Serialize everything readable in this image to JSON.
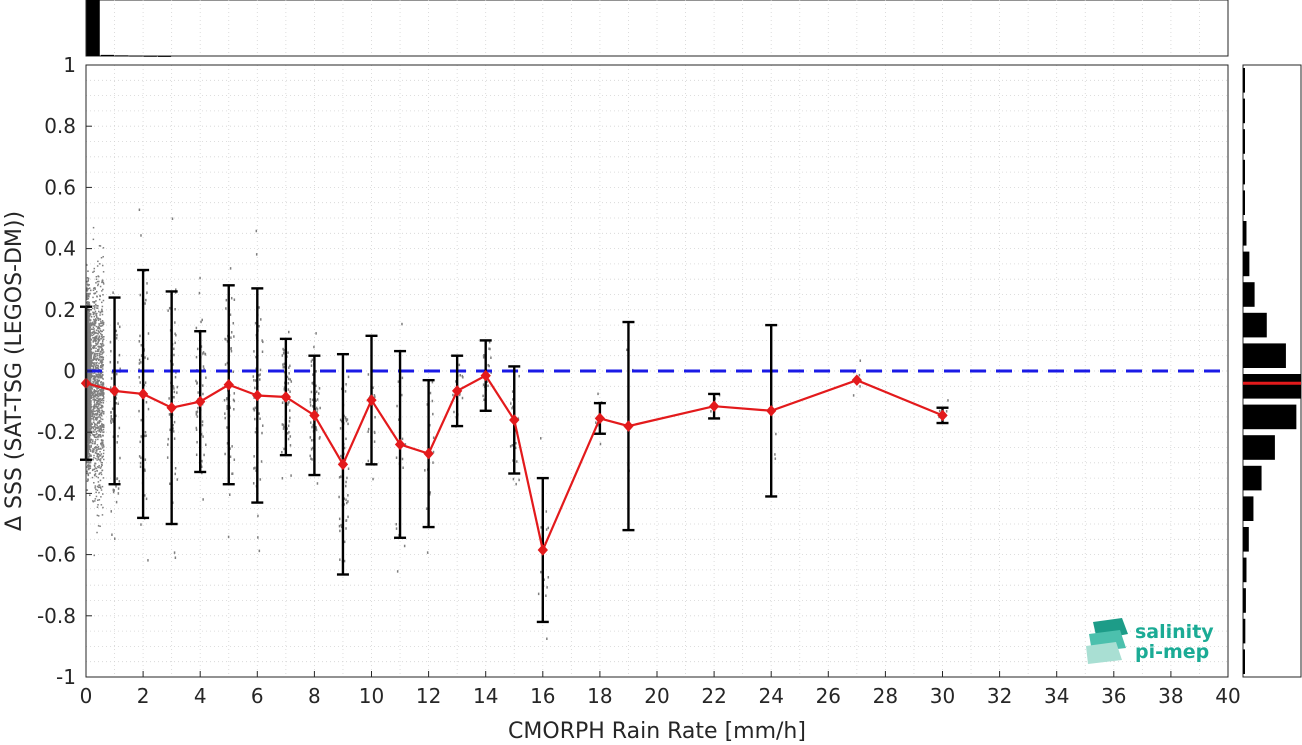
{
  "chart_data": {
    "type": "scatter",
    "xlabel": "CMORPH Rain Rate [mm/h]",
    "ylabel": "Δ SSS (SAT-TSG (LEGOS-DM))",
    "xlim": [
      0,
      40
    ],
    "ylim": [
      -1,
      1
    ],
    "xticks": [
      "0",
      "2",
      "4",
      "6",
      "8",
      "10",
      "12",
      "14",
      "16",
      "18",
      "20",
      "22",
      "24",
      "26",
      "28",
      "30",
      "32",
      "34",
      "36",
      "38",
      "40"
    ],
    "yticks": [
      "1",
      "0.8",
      "0.6",
      "0.4",
      "0.2",
      "0",
      "-0.2",
      "-0.4",
      "-0.6",
      "-0.8",
      "-1"
    ],
    "grid": true,
    "reference_line": {
      "y": 0,
      "style": "dashed",
      "color": "#1a1ae6"
    },
    "mean_series": {
      "color": "#e31a1c",
      "x": [
        0,
        1,
        2,
        3,
        4,
        5,
        6,
        7,
        8,
        9,
        10,
        11,
        12,
        13,
        14,
        15,
        16,
        18,
        19,
        22,
        24,
        27,
        30
      ],
      "y": [
        -0.04,
        -0.065,
        -0.075,
        -0.12,
        -0.1,
        -0.045,
        -0.08,
        -0.085,
        -0.145,
        -0.305,
        -0.095,
        -0.24,
        -0.27,
        -0.065,
        -0.015,
        -0.16,
        -0.585,
        -0.155,
        -0.18,
        -0.115,
        -0.13,
        -0.03,
        -0.145
      ],
      "std": [
        0.25,
        0.305,
        0.405,
        0.38,
        0.23,
        0.325,
        0.35,
        0.19,
        0.195,
        0.36,
        0.21,
        0.305,
        0.24,
        0.115,
        0.115,
        0.175,
        0.235,
        0.05,
        0.34,
        0.04,
        0.28,
        0.0,
        0.025
      ]
    },
    "scatter_color": "#7f7f7f",
    "top_histogram": {
      "bin_width": 0.5,
      "counts": [
        1.0,
        0.02,
        0.012,
        0.008,
        0.004,
        0.002
      ]
    },
    "right_histogram": {
      "bin_width": 0.1,
      "bin_centers": [
        0.95,
        0.85,
        0.75,
        0.65,
        0.55,
        0.45,
        0.35,
        0.25,
        0.15,
        0.05,
        -0.05,
        -0.15,
        -0.25,
        -0.35,
        -0.45,
        -0.55,
        -0.65,
        -0.75,
        -0.85,
        -0.95
      ],
      "counts": [
        0.005,
        0.01,
        0.015,
        0.02,
        0.03,
        0.06,
        0.11,
        0.2,
        0.41,
        0.74,
        1.0,
        0.92,
        0.55,
        0.32,
        0.18,
        0.1,
        0.06,
        0.05,
        0.04,
        0.03
      ],
      "mean": -0.04,
      "mean_color": "#e31a1c"
    }
  },
  "logo": {
    "line1": "salinity",
    "line2": "pi-mep"
  }
}
